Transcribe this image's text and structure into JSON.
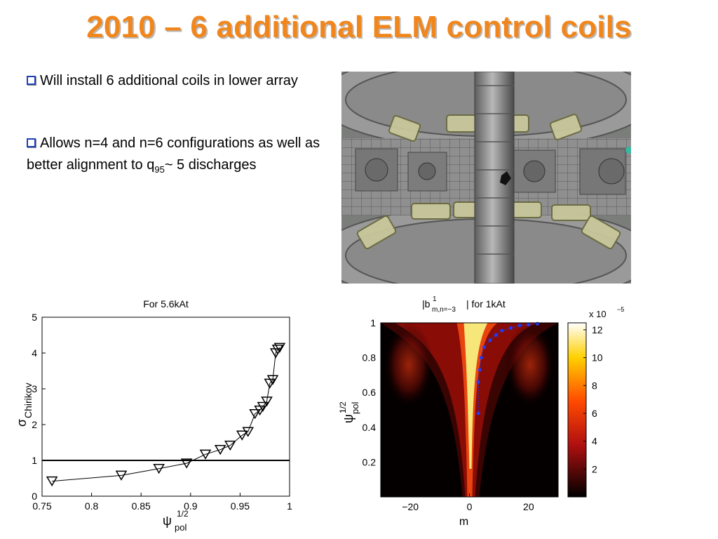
{
  "slide": {
    "title": "2010 – 6 additional  ELM control coils",
    "bullets": [
      {
        "text": "Will install 6 additional coils in lower array"
      },
      {
        "text_pre": "Allows n=4 and n=6 configurations as well as better alignment to q",
        "sub": "95",
        "text_post": "~ 5 discharges"
      }
    ]
  },
  "colors": {
    "title": "#f0861c",
    "bullet_box": "#1f3fb8"
  },
  "icons": {
    "bullet": "checkbox-bullet-icon"
  },
  "chart_data": [
    {
      "type": "line",
      "title": "For 5.6kAt",
      "xlabel": "ψ",
      "xlabel_sup": "1/2",
      "xlabel_sub": "pol",
      "ylabel": "σ",
      "ylabel_sub": "Chirikov",
      "xlim": [
        0.75,
        1.0
      ],
      "ylim": [
        0,
        5
      ],
      "x_ticks": [
        "0.75",
        "0.8",
        "0.85",
        "0.9",
        "0.95",
        "1"
      ],
      "y_ticks": [
        "0",
        "1",
        "2",
        "3",
        "4",
        "5"
      ],
      "grid": false,
      "marker": "downward-triangle",
      "series": [
        {
          "x": [
            0.76,
            0.83,
            0.868,
            0.896,
            0.915,
            0.93,
            0.94,
            0.952,
            0.958,
            0.965,
            0.97,
            0.973,
            0.977,
            0.98,
            0.983,
            0.986,
            0.988,
            0.99
          ],
          "y": [
            0.42,
            0.58,
            0.77,
            0.92,
            1.17,
            1.3,
            1.42,
            1.7,
            1.8,
            2.3,
            2.4,
            2.5,
            2.65,
            3.15,
            3.25,
            4.0,
            4.1,
            4.15
          ]
        }
      ],
      "reference_line": {
        "y": 1.0
      }
    },
    {
      "type": "heatmap",
      "title_pre": "|b",
      "title_sup": "1",
      "title_sub": "m,n=−3",
      "title_post": "| for 1kAt",
      "xlabel": "m",
      "ylabel": "ψ",
      "ylabel_sup": "1/2",
      "ylabel_sub": "pol",
      "xlim": [
        -30,
        30
      ],
      "ylim": [
        0,
        1
      ],
      "x_ticks": [
        "−20",
        "0",
        "20"
      ],
      "y_ticks": [
        "0.2",
        "0.4",
        "0.6",
        "0.8",
        "1"
      ],
      "colorbar": {
        "multiplier": "x 10",
        "multiplier_exp": "−5",
        "range": [
          0,
          12.5
        ],
        "ticks": [
          "2",
          "4",
          "6",
          "8",
          "10",
          "12"
        ],
        "colormap": "hot"
      },
      "resonance_markers": {
        "color": "#1e3cff",
        "m": [
          3,
          3,
          3.5,
          4,
          5,
          7,
          9,
          11,
          14,
          17,
          20,
          23
        ],
        "psi": [
          0.48,
          0.66,
          0.73,
          0.8,
          0.86,
          0.9,
          0.93,
          0.955,
          0.97,
          0.985,
          0.99,
          0.995
        ]
      }
    }
  ]
}
